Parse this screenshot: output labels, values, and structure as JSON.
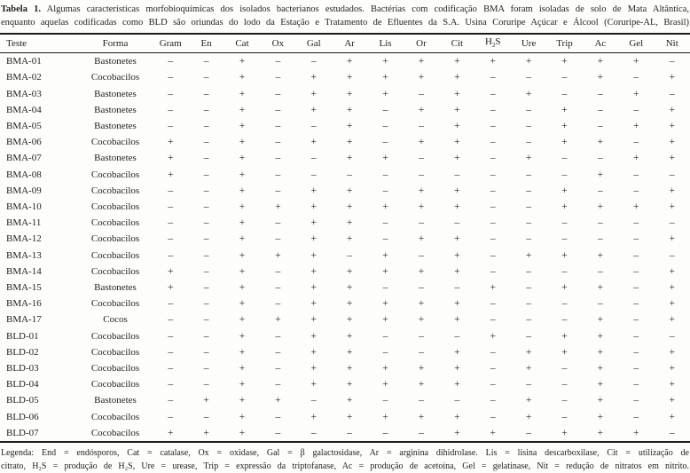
{
  "title": {
    "label": "Tabela 1.",
    "line1": "Algumas características morfobioquímicas dos isolados bacterianos estudados. Bactérias com codificação BMA foram isoladas de solo de Mata Altântica,",
    "line2": "enquanto aquelas codificadas como BLD são oriundas do lodo da Estação e Tratamento de Efluentes da S.A. Usina Coruripe Açúcar e Álcool (Coruripe-AL, Brasil)"
  },
  "table": {
    "headers": [
      "Teste",
      "Forma",
      "Gram",
      "En",
      "Cat",
      "Ox",
      "Gal",
      "Ar",
      "Lis",
      "Or",
      "Cit",
      "H2S",
      "Ure",
      "Trip",
      "Ac",
      "Gel",
      "Nit"
    ],
    "rows": [
      {
        "teste": "BMA-01",
        "forma": "Bastonetes",
        "values": [
          "–",
          "–",
          "+",
          "–",
          "–",
          "+",
          "+",
          "+",
          "+",
          "+",
          "+",
          "+",
          "+",
          "+",
          "–"
        ]
      },
      {
        "teste": "BMA-02",
        "forma": "Cocobacilos",
        "values": [
          "–",
          "–",
          "+",
          "–",
          "+",
          "+",
          "+",
          "+",
          "+",
          "–",
          "–",
          "–",
          "+",
          "–",
          "+"
        ]
      },
      {
        "teste": "BMA-03",
        "forma": "Bastonetes",
        "values": [
          "–",
          "–",
          "+",
          "–",
          "+",
          "+",
          "+",
          "–",
          "+",
          "–",
          "+",
          "–",
          "–",
          "+",
          "–"
        ]
      },
      {
        "teste": "BMA-04",
        "forma": "Bastonetes",
        "values": [
          "–",
          "–",
          "+",
          "–",
          "+",
          "+",
          "–",
          "+",
          "+",
          "–",
          "–",
          "+",
          "–",
          "–",
          "+"
        ]
      },
      {
        "teste": "BMA-05",
        "forma": "Bastonetes",
        "values": [
          "–",
          "–",
          "+",
          "–",
          "–",
          "+",
          "–",
          "–",
          "+",
          "–",
          "–",
          "+",
          "–",
          "+",
          "+"
        ]
      },
      {
        "teste": "BMA-06",
        "forma": "Cocobacilos",
        "values": [
          "+",
          "–",
          "+",
          "–",
          "+",
          "+",
          "–",
          "+",
          "+",
          "–",
          "–",
          "+",
          "+",
          "–",
          "+"
        ]
      },
      {
        "teste": "BMA-07",
        "forma": "Bastonetes",
        "values": [
          "+",
          "–",
          "+",
          "–",
          "–",
          "+",
          "+",
          "–",
          "+",
          "–",
          "+",
          "–",
          "–",
          "+",
          "+"
        ]
      },
      {
        "teste": "BMA-08",
        "forma": "Cocobacilos",
        "values": [
          "+",
          "–",
          "+",
          "–",
          "–",
          "–",
          "–",
          "–",
          "–",
          "–",
          "–",
          "–",
          "+",
          "–",
          "–"
        ]
      },
      {
        "teste": "BMA-09",
        "forma": "Cocobacilos",
        "values": [
          "–",
          "–",
          "+",
          "–",
          "+",
          "+",
          "–",
          "+",
          "+",
          "–",
          "–",
          "+",
          "–",
          "–",
          "+"
        ]
      },
      {
        "teste": "BMA-10",
        "forma": "Cocobacilos",
        "values": [
          "–",
          "–",
          "+",
          "+",
          "+",
          "+",
          "+",
          "+",
          "+",
          "–",
          "–",
          "+",
          "+",
          "+",
          "+"
        ]
      },
      {
        "teste": "BMA-11",
        "forma": "Cocobacilos",
        "values": [
          "–",
          "–",
          "+",
          "–",
          "+",
          "+",
          "–",
          "–",
          "–",
          "–",
          "–",
          "–",
          "–",
          "–",
          "–"
        ]
      },
      {
        "teste": "BMA-12",
        "forma": "Cocobacilos",
        "values": [
          "–",
          "–",
          "+",
          "–",
          "+",
          "+",
          "–",
          "+",
          "+",
          "–",
          "–",
          "–",
          "–",
          "–",
          "+"
        ]
      },
      {
        "teste": "BMA-13",
        "forma": "Cocobacilos",
        "values": [
          "–",
          "–",
          "+",
          "+",
          "+",
          "–",
          "+",
          "–",
          "+",
          "–",
          "+",
          "+",
          "+",
          "–",
          "–"
        ]
      },
      {
        "teste": "BMA-14",
        "forma": "Cocobacilos",
        "values": [
          "+",
          "–",
          "+",
          "–",
          "+",
          "+",
          "+",
          "+",
          "+",
          "–",
          "–",
          "–",
          "–",
          "–",
          "+"
        ]
      },
      {
        "teste": "BMA-15",
        "forma": "Bastonetes",
        "values": [
          "+",
          "–",
          "+",
          "–",
          "+",
          "+",
          "–",
          "–",
          "–",
          "+",
          "–",
          "+",
          "+",
          "–",
          "+"
        ]
      },
      {
        "teste": "BMA-16",
        "forma": "Cocobacilos",
        "values": [
          "–",
          "–",
          "+",
          "–",
          "+",
          "+",
          "+",
          "+",
          "+",
          "–",
          "–",
          "–",
          "–",
          "–",
          "+"
        ]
      },
      {
        "teste": "BMA-17",
        "forma": "Cocos",
        "values": [
          "–",
          "–",
          "+",
          "+",
          "+",
          "+",
          "+",
          "+",
          "+",
          "–",
          "–",
          "–",
          "+",
          "–",
          "+"
        ]
      },
      {
        "teste": "BLD-01",
        "forma": "Cocobacilos",
        "values": [
          "–",
          "–",
          "+",
          "–",
          "+",
          "+",
          "–",
          "–",
          "–",
          "+",
          "–",
          "+",
          "+",
          "–",
          "–"
        ]
      },
      {
        "teste": "BLD-02",
        "forma": "Cocobacilos",
        "values": [
          "–",
          "–",
          "+",
          "–",
          "+",
          "+",
          "–",
          "–",
          "+",
          "–",
          "+",
          "+",
          "+",
          "–",
          "+"
        ]
      },
      {
        "teste": "BLD-03",
        "forma": "Cocobacilos",
        "values": [
          "–",
          "–",
          "+",
          "–",
          "+",
          "+",
          "+",
          "+",
          "+",
          "–",
          "+",
          "–",
          "+",
          "–",
          "+"
        ]
      },
      {
        "teste": "BLD-04",
        "forma": "Cocobacilos",
        "values": [
          "–",
          "–",
          "+",
          "–",
          "+",
          "+",
          "+",
          "+",
          "+",
          "–",
          "–",
          "–",
          "+",
          "–",
          "+"
        ]
      },
      {
        "teste": "BLD-05",
        "forma": "Bastonetes",
        "values": [
          "–",
          "+",
          "+",
          "+",
          "–",
          "+",
          "–",
          "–",
          "–",
          "–",
          "+",
          "–",
          "+",
          "–",
          "+"
        ]
      },
      {
        "teste": "BLD-06",
        "forma": "Cocobacilos",
        "values": [
          "–",
          "–",
          "+",
          "–",
          "+",
          "+",
          "+",
          "+",
          "+",
          "–",
          "+",
          "–",
          "+",
          "–",
          "+"
        ]
      },
      {
        "teste": "BLD-07",
        "forma": "Cocobacilos",
        "values": [
          "+",
          "+",
          "+",
          "–",
          "–",
          "–",
          "–",
          "–",
          "+",
          "+",
          "–",
          "+",
          "+",
          "+",
          "–"
        ]
      }
    ]
  },
  "legend": {
    "line1": "Legenda: End = endósporos, Cat = catalase, Ox = oxidase, Gal = β galactosidase, Ar = arginina dihidrolase. Lis = lisina descarboxilase, Cit = utilização de",
    "line2": "citrato, H₂S = produção de H₂S, Ure = urease, Trip = expressão da triptofanase, Ac = produção de acetoína, Gel = gelatinase, Nit = redução de nitratos em nitrito."
  },
  "colors": {
    "text": "#1f1f1f",
    "rule": "#1b1b1b",
    "symbol": "#242836",
    "background": "#fdfdfc"
  }
}
